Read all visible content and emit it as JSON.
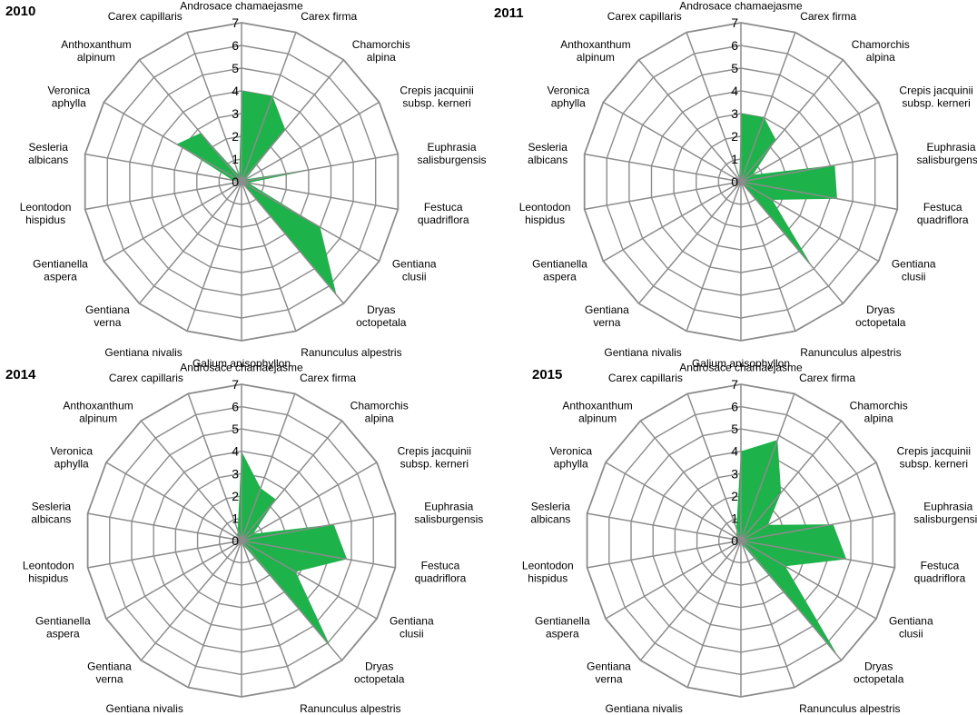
{
  "page": {
    "background": "#ffffff"
  },
  "style": {
    "grid_color": "#8c8c8c",
    "fill_color": "#1db24a",
    "text_color": "#000000"
  },
  "categories": [
    [
      "Androsace chamaejasme"
    ],
    [
      "Carex firma"
    ],
    [
      "Chamorchis",
      "alpina"
    ],
    [
      "Crepis jacquinii",
      "subsp. kerneri"
    ],
    [
      "Euphrasia",
      "salisburgensis"
    ],
    [
      "Festuca",
      "quadriflora"
    ],
    [
      "Gentiana",
      "clusii"
    ],
    [
      "Dryas",
      "octopetala"
    ],
    [
      "Ranunculus alpestris"
    ],
    [
      "Galium anisophyllon"
    ],
    [
      "Gentiana nivalis"
    ],
    [
      "Gentiana",
      "verna"
    ],
    [
      "Gentianella",
      "aspera"
    ],
    [
      "Leontodon",
      "hispidus"
    ],
    [
      "Sesleria",
      "albicans"
    ],
    [
      "Veronica",
      "aphylla"
    ],
    [
      "Anthoxanthum",
      "alpinum"
    ],
    [
      "Carex capillaris"
    ]
  ],
  "chart_data": [
    {
      "type": "radar",
      "title": "2010",
      "categories": [
        "Androsace chamaejasme",
        "Carex firma",
        "Chamorchis alpina",
        "Crepis jacquinii subsp. kerneri",
        "Euphrasia salisburgensis",
        "Festuca quadriflora",
        "Gentiana clusii",
        "Dryas octopetala",
        "Ranunculus alpestris",
        "Galium anisophyllon",
        "Gentiana nivalis",
        "Gentiana verna",
        "Gentianella aspera",
        "Leontodon hispidus",
        "Sesleria albicans",
        "Veronica aphylla",
        "Anthoxanthum alpinum",
        "Carex capillaris"
      ],
      "values": [
        4,
        4,
        3,
        0.2,
        3.8,
        0.3,
        4,
        6.5,
        0,
        0,
        0,
        0,
        2,
        0,
        0.4,
        3.3,
        2.8,
        0.3
      ],
      "r_ticks": [
        "0",
        "1",
        "2",
        "3",
        "4",
        "5",
        "6",
        "7"
      ],
      "rlim": [
        0,
        7
      ],
      "grid": true
    },
    {
      "type": "radar",
      "title": "2011",
      "categories": [
        "Androsace chamaejasme",
        "Carex firma",
        "Chamorchis alpina",
        "Crepis jacquinii subsp. kerneri",
        "Euphrasia salisburgensis",
        "Festuca quadriflora",
        "Gentiana clusii",
        "Dryas octopetala",
        "Ranunculus alpestris",
        "Galium anisophyllon",
        "Gentiana nivalis",
        "Gentiana verna",
        "Gentianella aspera",
        "Leontodon hispidus",
        "Sesleria albicans",
        "Veronica aphylla",
        "Anthoxanthum alpinum",
        "Carex capillaris"
      ],
      "values": [
        3,
        3,
        2.4,
        0.6,
        4.2,
        4.3,
        1.6,
        4.9,
        0,
        0,
        0,
        0,
        0,
        0,
        2,
        0,
        0,
        0.2
      ],
      "r_ticks": [
        "0",
        "1",
        "2",
        "3",
        "4",
        "5",
        "6",
        "7"
      ],
      "rlim": [
        0,
        7
      ],
      "grid": true
    },
    {
      "type": "radar",
      "title": "2014",
      "categories": [
        "Androsace chamaejasme",
        "Carex firma",
        "Chamorchis alpina",
        "Crepis jacquinii subsp. kerneri",
        "Euphrasia salisburgensis",
        "Festuca quadriflora",
        "Gentiana clusii",
        "Dryas octopetala",
        "Ranunculus alpestris",
        "Galium anisophyllon",
        "Gentiana nivalis",
        "Gentiana verna",
        "Gentianella aspera",
        "Leontodon hispidus",
        "Sesleria albicans",
        "Veronica aphylla",
        "Anthoxanthum alpinum",
        "Carex capillaris"
      ],
      "values": [
        4,
        2.5,
        2.4,
        0.6,
        4.2,
        4.8,
        2.8,
        6.2,
        0.2,
        0,
        0,
        0,
        0,
        0,
        2.9,
        0,
        0.3,
        0.5
      ],
      "r_ticks": [
        "0",
        "1",
        "2",
        "3",
        "4",
        "5",
        "6",
        "7"
      ],
      "rlim": [
        0,
        7
      ],
      "grid": true
    },
    {
      "type": "radar",
      "title": "2015",
      "categories": [
        "Androsace chamaejasme",
        "Carex firma",
        "Chamorchis alpina",
        "Crepis jacquinii subsp. kerneri",
        "Euphrasia salisburgensis",
        "Festuca quadriflora",
        "Gentiana clusii",
        "Dryas octopetala",
        "Ranunculus alpestris",
        "Galium anisophyllon",
        "Gentiana nivalis",
        "Gentiana verna",
        "Gentianella aspera",
        "Leontodon hispidus",
        "Sesleria albicans",
        "Veronica aphylla",
        "Anthoxanthum alpinum",
        "Carex capillaris"
      ],
      "values": [
        4,
        4.8,
        2.8,
        1.4,
        4.2,
        4.8,
        2.3,
        6.8,
        0.2,
        0,
        0,
        0,
        2.4,
        0,
        0.2,
        0.2,
        0.3,
        0.6
      ],
      "r_ticks": [
        "0",
        "1",
        "2",
        "3",
        "4",
        "5",
        "6",
        "7"
      ],
      "rlim": [
        0,
        7
      ],
      "grid": true
    }
  ]
}
